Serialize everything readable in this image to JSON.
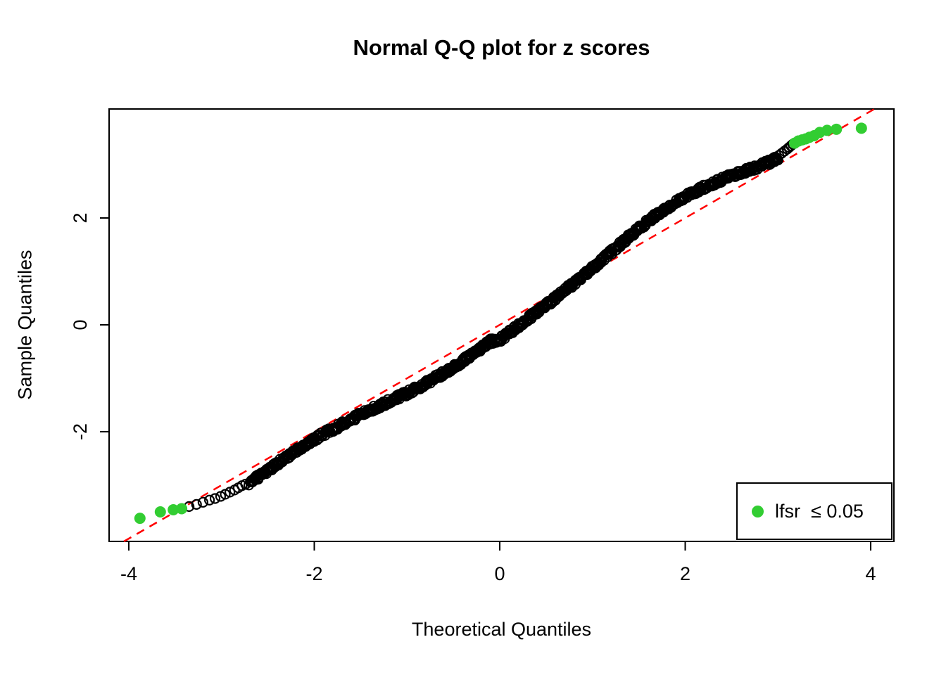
{
  "chart_data": {
    "type": "scatter",
    "subtype": "normal-qq-plot",
    "title": "Normal Q-Q plot for z scores",
    "xlabel": "Theoretical Quantiles",
    "ylabel": "Sample Quantiles",
    "x_ticks": [
      -4,
      -2,
      0,
      2,
      4
    ],
    "y_ticks": [
      -2,
      0,
      2
    ],
    "xlim": [
      -4.2,
      4.2
    ],
    "ylim": [
      -4.05,
      4.04
    ],
    "grid": false,
    "point_style": {
      "marker": "open-circle",
      "color": "#000000"
    },
    "reference_line": {
      "name": "qqline",
      "slope": 1,
      "intercept": 0,
      "color": "#FF0000",
      "style": "dashed"
    },
    "main_curve": [
      [
        -2.7,
        -2.95
      ],
      [
        -2.6,
        -2.84
      ],
      [
        -2.5,
        -2.72
      ],
      [
        -2.4,
        -2.6
      ],
      [
        -2.3,
        -2.48
      ],
      [
        -2.2,
        -2.37
      ],
      [
        -2.1,
        -2.25
      ],
      [
        -2.0,
        -2.14
      ],
      [
        -1.9,
        -2.04
      ],
      [
        -1.8,
        -1.95
      ],
      [
        -1.7,
        -1.86
      ],
      [
        -1.6,
        -1.77
      ],
      [
        -1.5,
        -1.68
      ],
      [
        -1.4,
        -1.6
      ],
      [
        -1.3,
        -1.52
      ],
      [
        -1.2,
        -1.44
      ],
      [
        -1.1,
        -1.36
      ],
      [
        -1.0,
        -1.28
      ],
      [
        -0.9,
        -1.19
      ],
      [
        -0.8,
        -1.1
      ],
      [
        -0.7,
        -1.0
      ],
      [
        -0.6,
        -0.9
      ],
      [
        -0.5,
        -0.79
      ],
      [
        -0.4,
        -0.68
      ],
      [
        -0.3,
        -0.56
      ],
      [
        -0.2,
        -0.44
      ],
      [
        -0.1,
        -0.31
      ],
      [
        0.0,
        -0.28
      ],
      [
        0.1,
        -0.15
      ],
      [
        0.2,
        -0.02
      ],
      [
        0.3,
        0.11
      ],
      [
        0.4,
        0.24
      ],
      [
        0.5,
        0.37
      ],
      [
        0.6,
        0.5
      ],
      [
        0.7,
        0.64
      ],
      [
        0.8,
        0.78
      ],
      [
        0.9,
        0.92
      ],
      [
        1.0,
        1.06
      ],
      [
        1.1,
        1.21
      ],
      [
        1.2,
        1.36
      ],
      [
        1.3,
        1.51
      ],
      [
        1.4,
        1.66
      ],
      [
        1.5,
        1.8
      ],
      [
        1.6,
        1.94
      ],
      [
        1.7,
        2.07
      ],
      [
        1.8,
        2.19
      ],
      [
        1.9,
        2.3
      ],
      [
        2.0,
        2.4
      ],
      [
        2.1,
        2.49
      ],
      [
        2.2,
        2.57
      ],
      [
        2.3,
        2.65
      ],
      [
        2.4,
        2.72
      ],
      [
        2.5,
        2.79
      ],
      [
        2.6,
        2.85
      ],
      [
        2.7,
        2.91
      ],
      [
        2.8,
        2.97
      ],
      [
        2.9,
        3.04
      ],
      [
        3.0,
        3.12
      ]
    ],
    "left_tail_points": [
      [
        -3.35,
        -3.4
      ],
      [
        -3.27,
        -3.36
      ],
      [
        -3.2,
        -3.32
      ],
      [
        -3.13,
        -3.28
      ],
      [
        -3.07,
        -3.25
      ],
      [
        -3.01,
        -3.21
      ],
      [
        -2.96,
        -3.17
      ],
      [
        -2.91,
        -3.13
      ],
      [
        -2.86,
        -3.09
      ],
      [
        -2.82,
        -3.05
      ],
      [
        -2.78,
        -3.01
      ],
      [
        -2.74,
        -2.98
      ]
    ],
    "right_tail_points": [
      [
        2.92,
        3.05
      ],
      [
        2.95,
        3.09
      ],
      [
        2.98,
        3.13
      ],
      [
        3.01,
        3.17
      ],
      [
        3.04,
        3.21
      ],
      [
        3.07,
        3.25
      ],
      [
        3.1,
        3.29
      ],
      [
        3.12,
        3.32
      ],
      [
        3.14,
        3.35
      ],
      [
        3.16,
        3.38
      ]
    ],
    "highlight": {
      "color": "#32CD32",
      "points": [
        [
          -3.88,
          -3.62
        ],
        [
          -3.66,
          -3.5
        ],
        [
          -3.52,
          -3.46
        ],
        [
          -3.43,
          -3.44
        ],
        [
          3.18,
          3.4
        ],
        [
          3.22,
          3.44
        ],
        [
          3.26,
          3.46
        ],
        [
          3.3,
          3.48
        ],
        [
          3.34,
          3.51
        ],
        [
          3.39,
          3.54
        ],
        [
          3.45,
          3.6
        ],
        [
          3.53,
          3.64
        ],
        [
          3.63,
          3.66
        ],
        [
          3.9,
          3.68
        ]
      ]
    },
    "legend": {
      "label": "lfsr  ≤ 0.05",
      "position": "bottomright"
    }
  }
}
